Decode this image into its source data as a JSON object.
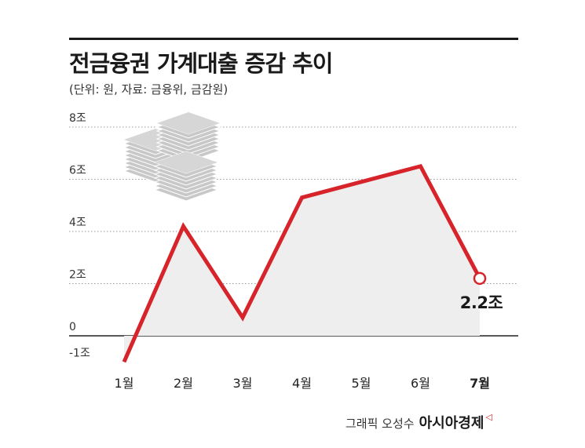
{
  "header": {
    "title": "전금융권 가계대출 증감 추이",
    "subtitle": "(단위: 원, 자료: 금융위, 금감원)"
  },
  "footer": {
    "credit": "그래픽 오성수",
    "brand": "아시아경제"
  },
  "colors": {
    "line": "#d6242a",
    "area": "#eeeeee",
    "grid": "#999999",
    "axis": "#222222"
  },
  "decoration": {
    "icon": "money-stack-icon"
  },
  "chart_data": {
    "type": "line",
    "title": "전금융권 가계대출 증감 추이",
    "ylabel": "",
    "xlabel": "",
    "categories": [
      "1월",
      "2월",
      "3월",
      "4월",
      "5월",
      "6월",
      "7월"
    ],
    "values": [
      -1.0,
      4.2,
      0.7,
      5.3,
      5.9,
      6.5,
      2.2
    ],
    "y_ticks": [
      {
        "value": 8,
        "label": "8조"
      },
      {
        "value": 6,
        "label": "6조"
      },
      {
        "value": 4,
        "label": "4조"
      },
      {
        "value": 2,
        "label": "2조"
      },
      {
        "value": 0,
        "label": "0"
      },
      {
        "value": -1,
        "label": "-1조"
      }
    ],
    "ylim": [
      -1,
      8
    ],
    "grid": true,
    "annotation": {
      "index": 6,
      "text": "2.2조"
    }
  }
}
